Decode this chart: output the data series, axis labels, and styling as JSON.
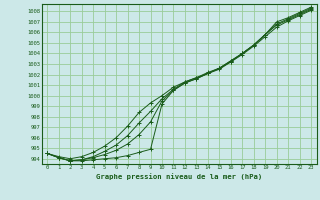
{
  "title": "Graphe pression niveau de la mer (hPa)",
  "bg_color": "#cce8e8",
  "grid_color": "#99cc99",
  "line_color": "#1a5c1a",
  "ylim": [
    993.5,
    1008.7
  ],
  "xlim": [
    -0.5,
    23.5
  ],
  "yticks": [
    994,
    995,
    996,
    997,
    998,
    999,
    1000,
    1001,
    1002,
    1003,
    1004,
    1005,
    1006,
    1007,
    1008
  ],
  "xticks": [
    0,
    1,
    2,
    3,
    4,
    5,
    6,
    7,
    8,
    9,
    10,
    11,
    12,
    13,
    14,
    15,
    16,
    17,
    18,
    19,
    20,
    21,
    22,
    23
  ],
  "series": [
    [
      994.5,
      994.1,
      993.8,
      993.8,
      993.9,
      994.0,
      994.1,
      994.3,
      994.6,
      994.9,
      999.2,
      1000.5,
      1001.2,
      1001.6,
      1002.1,
      1002.5,
      1003.2,
      1004.0,
      1004.8,
      1005.8,
      1007.0,
      1007.4,
      1007.9,
      1008.4
    ],
    [
      994.5,
      994.1,
      993.8,
      993.9,
      994.1,
      994.4,
      994.8,
      995.4,
      996.3,
      997.5,
      999.5,
      1000.5,
      1001.2,
      1001.6,
      1002.1,
      1002.6,
      1003.3,
      1004.0,
      1004.8,
      1005.8,
      1006.8,
      1007.3,
      1007.8,
      1008.3
    ],
    [
      994.5,
      994.1,
      993.8,
      993.9,
      994.2,
      994.7,
      995.3,
      996.2,
      997.4,
      998.5,
      999.7,
      1000.6,
      1001.3,
      1001.7,
      1002.2,
      1002.6,
      1003.3,
      1004.0,
      1004.8,
      1005.8,
      1006.7,
      1007.2,
      1007.7,
      1008.2
    ],
    [
      994.5,
      994.2,
      994.0,
      994.2,
      994.6,
      995.2,
      996.0,
      997.1,
      998.4,
      999.3,
      1000.0,
      1000.8,
      1001.3,
      1001.7,
      1002.1,
      1002.6,
      1003.2,
      1003.9,
      1004.7,
      1005.6,
      1006.5,
      1007.1,
      1007.6,
      1008.1
    ]
  ]
}
